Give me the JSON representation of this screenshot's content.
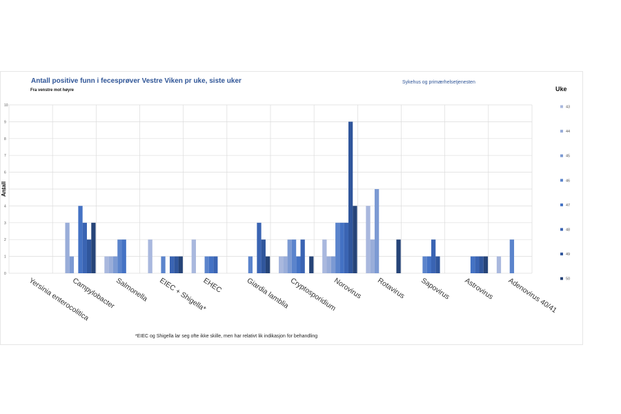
{
  "chart_data": {
    "type": "bar",
    "title": "Antall positive funn i fecesprøver Vestre Viken pr uke, siste uker",
    "subtitle": "Fra venstre mot høyre",
    "source": "Sykehus og primærhelsetjenesten",
    "ylabel": "Antall",
    "xlabel": "",
    "legend_title": "Uke",
    "legend_position": "right",
    "footnote": "*EIEC og Shigella lar seg ofte ikke skille, men har relativt lik indikasjon for behandling",
    "ylim": [
      0,
      10
    ],
    "yticks": [
      "0",
      "1",
      "2",
      "3",
      "4",
      "5",
      "6",
      "7",
      "8",
      "9",
      "10"
    ],
    "grid": true,
    "categories": [
      "Yersinia enterocolitica",
      "Campylobacter",
      "Salmonella",
      "EIEC + Shigella*",
      "EHEC",
      "Giardia lamblia",
      "Cryptosporidium",
      "Norovirus",
      "Rotavirus",
      "Sapovirus",
      "Astrovirus",
      "Adenovirus 40/41"
    ],
    "colors": [
      "#a9b8de",
      "#99add9",
      "#7c9ad3",
      "#5b84cc",
      "#4472c4",
      "#3a64b3",
      "#30569c",
      "#264478"
    ],
    "series": [
      {
        "name": "43",
        "values": [
          0,
          0,
          1,
          2,
          2,
          0,
          1,
          2,
          4,
          0,
          0,
          1
        ]
      },
      {
        "name": "44",
        "values": [
          0,
          3,
          1,
          0,
          0,
          0,
          1,
          1,
          2,
          0,
          0,
          0
        ]
      },
      {
        "name": "45",
        "values": [
          0,
          1,
          1,
          0,
          0,
          0,
          2,
          1,
          5,
          0,
          0,
          0
        ]
      },
      {
        "name": "46",
        "values": [
          0,
          0,
          2,
          1,
          1,
          1,
          2,
          3,
          0,
          1,
          0,
          2
        ]
      },
      {
        "name": "47",
        "values": [
          0,
          4,
          2,
          0,
          1,
          0,
          1,
          3,
          0,
          1,
          1,
          0
        ]
      },
      {
        "name": "48",
        "values": [
          0,
          3,
          0,
          1,
          1,
          3,
          2,
          3,
          0,
          2,
          1,
          0
        ]
      },
      {
        "name": "49",
        "values": [
          0,
          2,
          0,
          1,
          0,
          2,
          0,
          9,
          0,
          1,
          1,
          0
        ]
      },
      {
        "name": "50",
        "values": [
          0,
          3,
          0,
          1,
          0,
          1,
          1,
          4,
          2,
          0,
          1,
          0
        ]
      }
    ]
  }
}
